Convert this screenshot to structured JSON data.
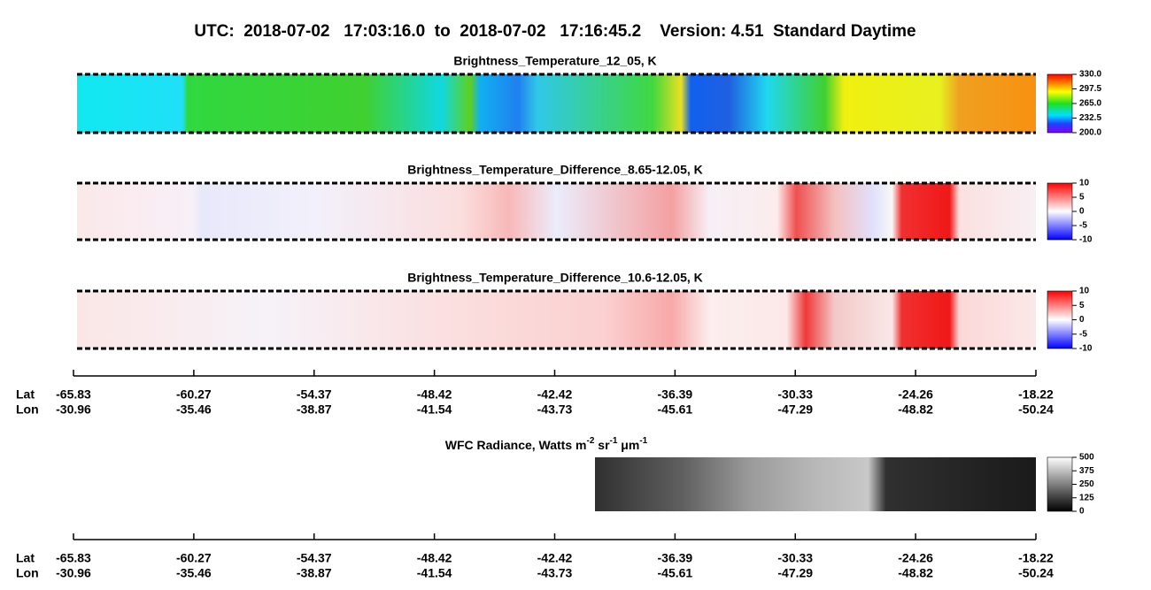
{
  "header": {
    "title": "UTC:  2018-07-02   17:03:16.0  to  2018-07-02   17:16:45.2    Version: 4.51  Standard Daytime"
  },
  "panels": [
    {
      "title": "Brightness_Temperature_12_05, K",
      "clim": [
        200,
        330
      ],
      "colorbar_ticks": [
        {
          "value": 330,
          "label": "330.0"
        },
        {
          "value": 297.5,
          "label": "297.5"
        },
        {
          "value": 265,
          "label": "265.0"
        },
        {
          "value": 232.5,
          "label": "232.5"
        },
        {
          "value": 200,
          "label": "200.0"
        }
      ]
    },
    {
      "title": "Brightness_Temperature_Difference_8.65-12.05, K",
      "clim": [
        -10,
        10
      ],
      "colorbar_ticks": [
        10,
        5,
        0,
        -5,
        -10
      ]
    },
    {
      "title": "Brightness_Temperature_Difference_10.6-12.05, K",
      "clim": [
        -10,
        10
      ],
      "colorbar_ticks": [
        10,
        5,
        0,
        -5,
        -10
      ]
    }
  ],
  "wfc": {
    "title_parts": [
      "WFC Radiance, Watts m",
      "-2",
      " sr",
      "-1",
      " μm",
      "-1"
    ],
    "clim": [
      0,
      500
    ],
    "colorbar_ticks": [
      500,
      375,
      250,
      125,
      0
    ]
  },
  "axes": [
    {
      "lat_label": "Lat",
      "lon_label": "Lon",
      "lat": [
        -65.83,
        -60.27,
        -54.37,
        -48.42,
        -42.42,
        -36.39,
        -30.33,
        -24.26,
        -18.22
      ],
      "lon": [
        -30.96,
        -35.46,
        -38.87,
        -41.54,
        -43.73,
        -45.61,
        -47.29,
        -48.82,
        -50.24
      ]
    },
    {
      "lat_label": "Lat",
      "lon_label": "Lon",
      "lat": [
        -65.83,
        -60.27,
        -54.37,
        -48.42,
        -42.42,
        -36.39,
        -30.33,
        -24.26,
        -18.22
      ],
      "lon": [
        -30.96,
        -35.46,
        -38.87,
        -41.54,
        -43.73,
        -45.61,
        -47.29,
        -48.82,
        -50.24
      ]
    }
  ]
}
